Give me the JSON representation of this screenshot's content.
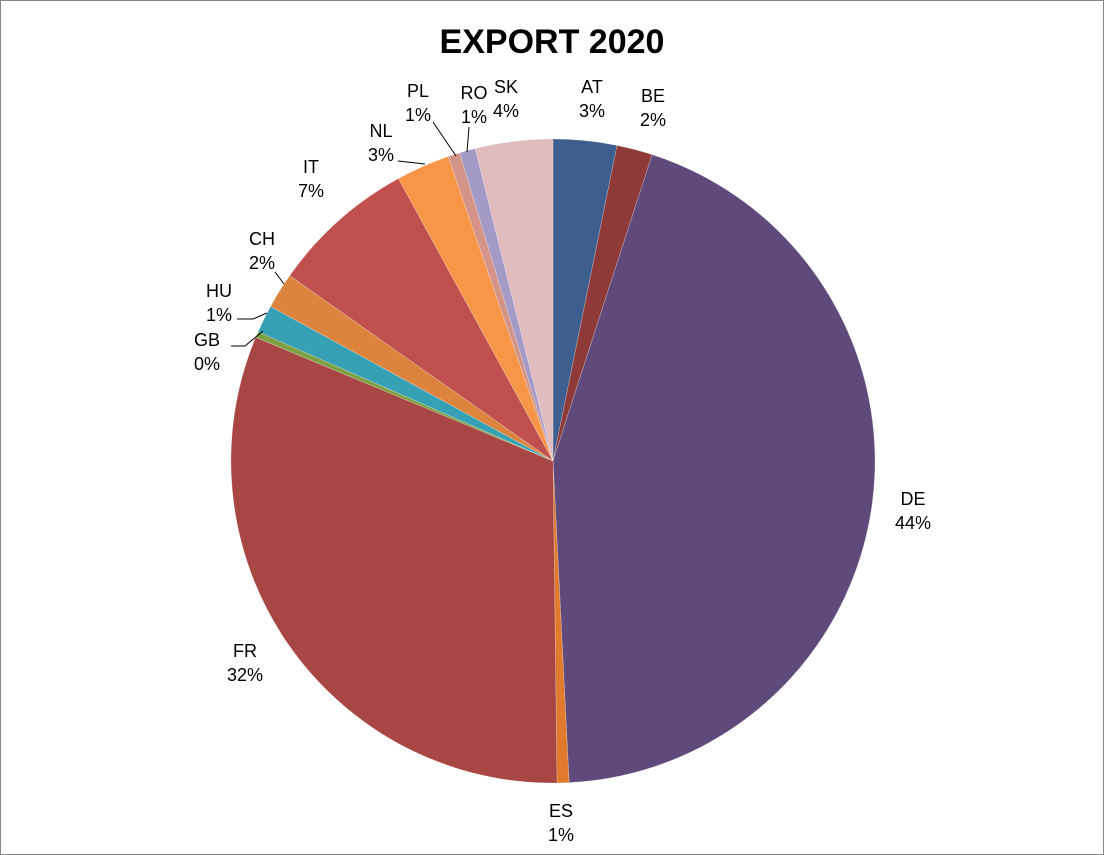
{
  "chart_data": {
    "type": "pie",
    "title": "EXPORT 2020",
    "start_angle_deg": 0,
    "direction": "clockwise",
    "slices": [
      {
        "name": "AT",
        "percent_label": "3%",
        "value": 3.2,
        "color": "#3d5e8e"
      },
      {
        "name": "BE",
        "percent_label": "2%",
        "value": 1.8,
        "color": "#8e3a38"
      },
      {
        "name": "DE",
        "percent_label": "44%",
        "value": 44.4,
        "color": "#604a7b"
      },
      {
        "name": "ES",
        "percent_label": "1%",
        "value": 0.6,
        "color": "#e07b2e"
      },
      {
        "name": "FR",
        "percent_label": "32%",
        "value": 31.6,
        "color": "#a84644"
      },
      {
        "name": "GB",
        "percent_label": "0%",
        "value": 0.3,
        "color": "#7e9f42"
      },
      {
        "name": "HU",
        "percent_label": "1%",
        "value": 1.4,
        "color": "#36a0b5"
      },
      {
        "name": "CH",
        "percent_label": "2%",
        "value": 1.8,
        "color": "#dc843d"
      },
      {
        "name": "IT",
        "percent_label": "7%",
        "value": 7.3,
        "color": "#c0504d"
      },
      {
        "name": "NL",
        "percent_label": "3%",
        "value": 2.7,
        "color": "#f79646"
      },
      {
        "name": "PL",
        "percent_label": "1%",
        "value": 0.6,
        "color": "#d49488"
      },
      {
        "name": "RO",
        "percent_label": "1%",
        "value": 0.8,
        "color": "#a39bc6"
      },
      {
        "name": "SK",
        "percent_label": "4%",
        "value": 3.9,
        "color": "#e0bcbe"
      }
    ]
  }
}
